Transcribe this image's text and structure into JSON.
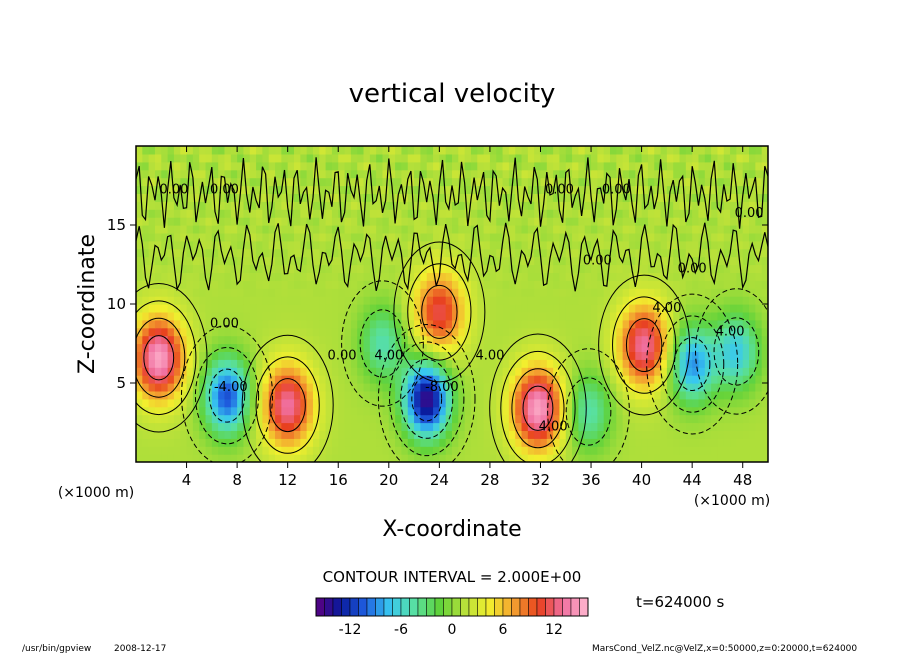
{
  "chart_data": {
    "type": "heatmap",
    "title": "vertical velocity",
    "xlabel": "X-coordinate",
    "ylabel": "Z-coordinate",
    "x_unit_label": "(×1000 m)",
    "y_unit_label": "(×1000 m)",
    "xlim": [
      0,
      50
    ],
    "ylim": [
      0,
      20
    ],
    "x_ticks": [
      4,
      8,
      12,
      16,
      20,
      24,
      28,
      32,
      36,
      40,
      44,
      48
    ],
    "y_ticks": [
      5,
      10,
      15
    ],
    "contour_interval_text": "CONTOUR INTERVAL = 2.000E+00",
    "time_text": "t=624000 s",
    "colorbar": {
      "range": [
        -16,
        16
      ],
      "ticks": [
        -12,
        -6,
        0,
        6,
        12
      ],
      "colors": [
        "#5b0080",
        "#0a1a9c",
        "#1f5fe0",
        "#38c8f0",
        "#59e0a0",
        "#5fd23a",
        "#b6e03a",
        "#f2ef2e",
        "#f3a030",
        "#e8401e",
        "#f070a0",
        "#ffb8d0"
      ]
    },
    "features": [
      {
        "kind": "updraft",
        "x": 1.8,
        "z": 6.6,
        "peak": 14
      },
      {
        "kind": "downdraft",
        "x": 7.2,
        "z": 4.2,
        "peak": -12
      },
      {
        "kind": "updraft",
        "x": 12.0,
        "z": 3.6,
        "peak": 12
      },
      {
        "kind": "downdraft",
        "x": 19.5,
        "z": 7.5,
        "peak": -6
      },
      {
        "kind": "downdraft",
        "x": 23.0,
        "z": 4.0,
        "peak": -16
      },
      {
        "kind": "updraft",
        "x": 24.0,
        "z": 9.5,
        "peak": 10
      },
      {
        "kind": "updraft",
        "x": 31.8,
        "z": 3.4,
        "peak": 14
      },
      {
        "kind": "downdraft",
        "x": 35.8,
        "z": 3.2,
        "peak": -6
      },
      {
        "kind": "updraft",
        "x": 40.2,
        "z": 7.4,
        "peak": 12
      },
      {
        "kind": "downdraft",
        "x": 44.0,
        "z": 6.2,
        "peak": -10
      },
      {
        "kind": "downdraft",
        "x": 47.5,
        "z": 7.0,
        "peak": -8
      }
    ],
    "contour_labels": [
      {
        "text": "0.00",
        "x": 3.0,
        "z": 17.0
      },
      {
        "text": "0.00",
        "x": 7.0,
        "z": 17.0
      },
      {
        "text": "0.00",
        "x": 33.5,
        "z": 17.0
      },
      {
        "text": "0.00",
        "x": 38.0,
        "z": 17.0
      },
      {
        "text": "0.00",
        "x": 44.0,
        "z": 12.0
      },
      {
        "text": "0.00",
        "x": 48.5,
        "z": 15.5
      },
      {
        "text": "0.00",
        "x": 36.5,
        "z": 12.5
      },
      {
        "text": "0.00",
        "x": 16.3,
        "z": 6.5
      },
      {
        "text": "-4.00",
        "x": 7.5,
        "z": 4.5
      },
      {
        "text": "4.00",
        "x": 20.0,
        "z": 6.5
      },
      {
        "text": "-8.00",
        "x": 24.2,
        "z": 4.5
      },
      {
        "text": "4.00",
        "x": 28.0,
        "z": 6.5
      },
      {
        "text": "4.00",
        "x": 33.0,
        "z": 2.0
      },
      {
        "text": "4.00",
        "x": 42.0,
        "z": 9.5
      },
      {
        "text": "4.00",
        "x": 47.0,
        "z": 8.0
      },
      {
        "text": "0.00",
        "x": 7.0,
        "z": 8.5
      }
    ]
  },
  "footer": {
    "program": "/usr/bin/gpview",
    "date": "2008-12-17",
    "source": "MarsCond_VelZ.nc@VelZ,x=0:50000,z=0:20000,t=624000"
  }
}
